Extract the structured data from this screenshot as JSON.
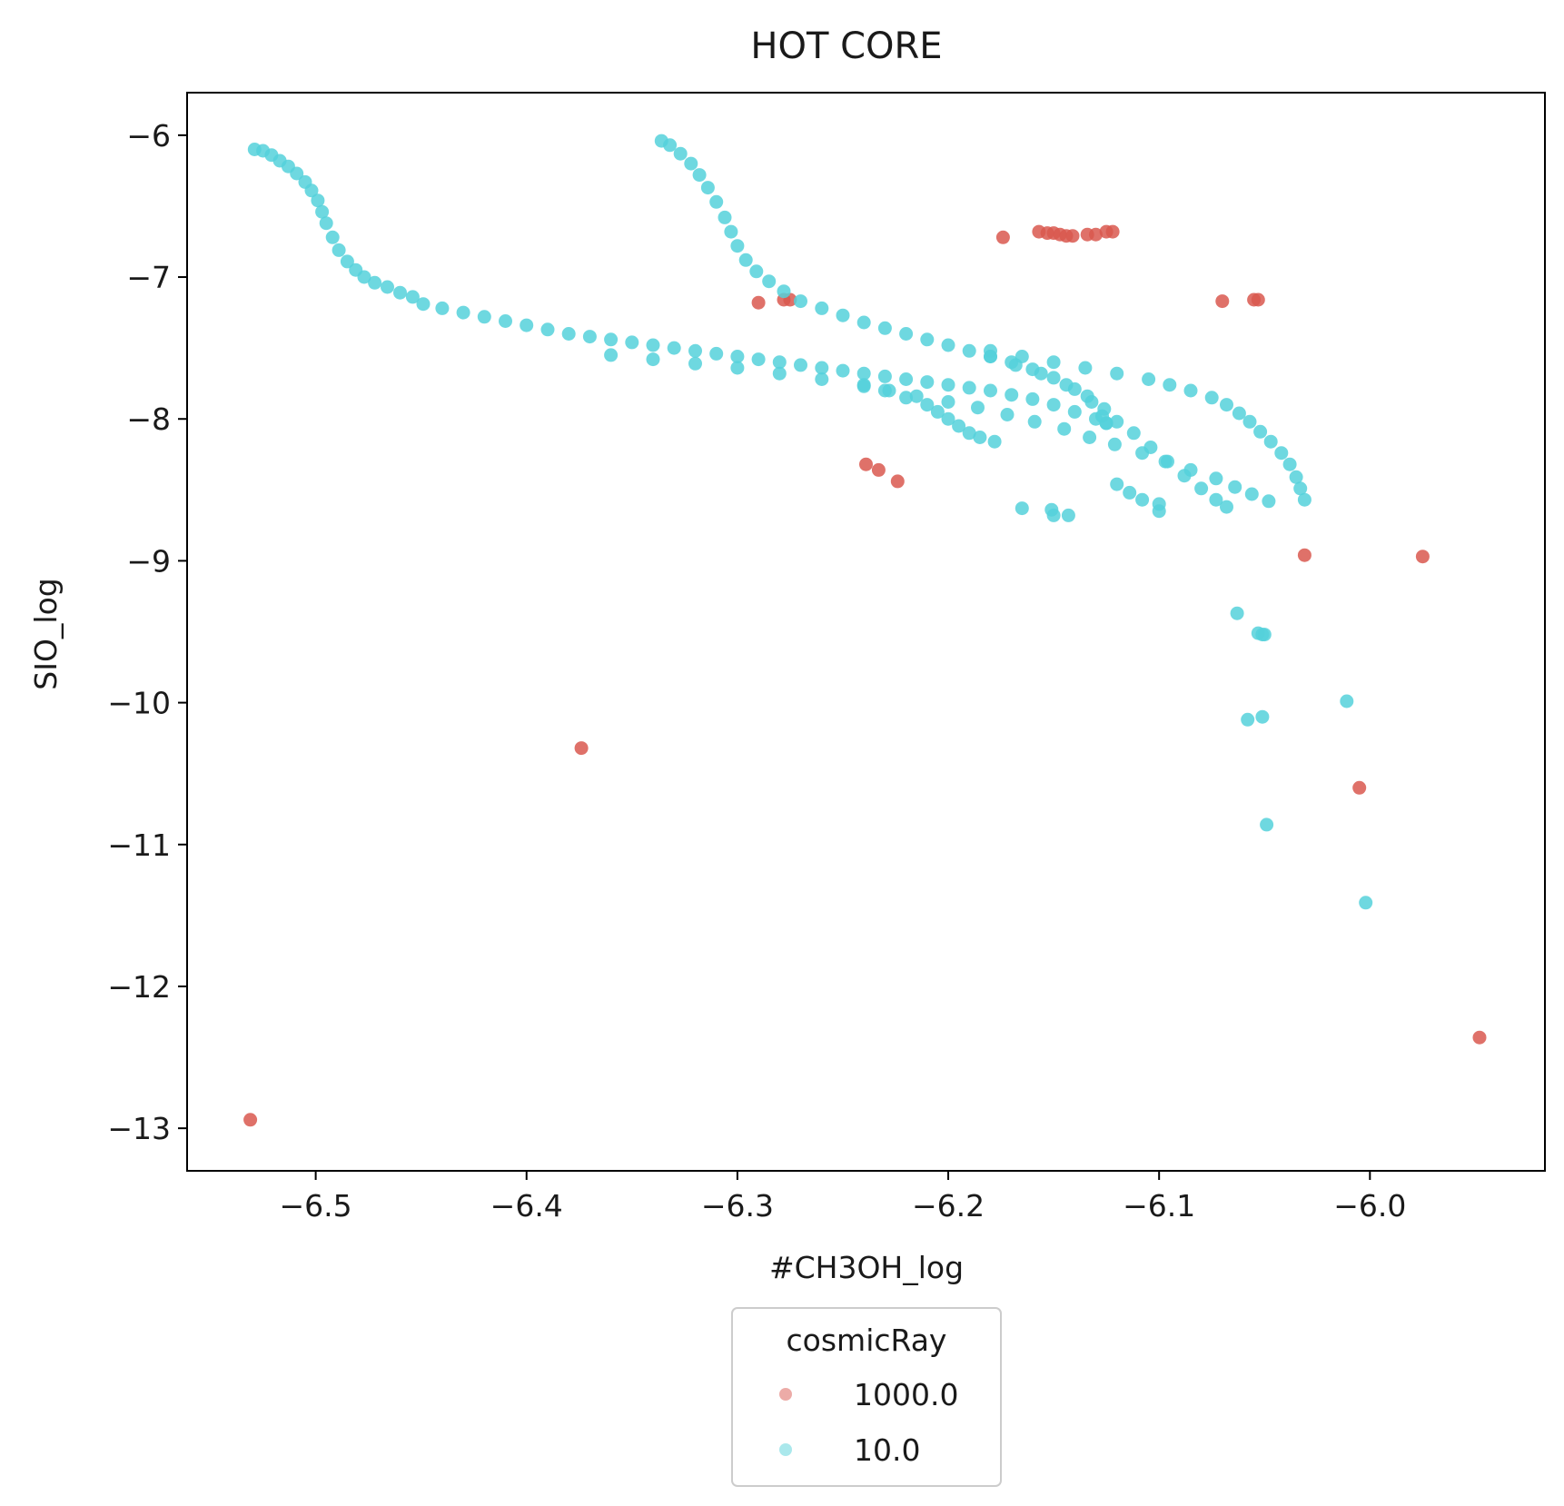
{
  "chart_data": {
    "type": "scatter",
    "title": "HOT CORE",
    "xlabel": "#CH3OH_log",
    "ylabel": "SIO_log",
    "xlim": [
      -6.561,
      -5.917
    ],
    "ylim": [
      -13.3,
      -5.7
    ],
    "xticks": [
      -6.5,
      -6.4,
      -6.3,
      -6.2,
      -6.1,
      -6.0
    ],
    "yticks": [
      -6,
      -7,
      -8,
      -9,
      -10,
      -11,
      -12,
      -13
    ],
    "xtick_labels": [
      "−6.5",
      "−6.4",
      "−6.3",
      "−6.2",
      "−6.1",
      "−6.0"
    ],
    "ytick_labels": [
      "−6",
      "−7",
      "−8",
      "−9",
      "−10",
      "−11",
      "−12",
      "−13"
    ],
    "grid": false,
    "legend": {
      "title": "cosmicRay",
      "placement": "below-center",
      "entries": [
        {
          "label": "1000.0",
          "color": "#d9584f"
        },
        {
          "label": "10.0",
          "color": "#55d1da"
        }
      ]
    },
    "series": [
      {
        "name": "1000.0",
        "color": "#d9584f",
        "points": [
          [
            -6.531,
            -12.94
          ],
          [
            -6.374,
            -10.32
          ],
          [
            -6.29,
            -7.18
          ],
          [
            -6.278,
            -7.16
          ],
          [
            -6.275,
            -7.16
          ],
          [
            -6.239,
            -8.32
          ],
          [
            -6.233,
            -8.36
          ],
          [
            -6.224,
            -8.44
          ],
          [
            -6.174,
            -6.72
          ],
          [
            -6.157,
            -6.68
          ],
          [
            -6.153,
            -6.69
          ],
          [
            -6.15,
            -6.69
          ],
          [
            -6.147,
            -6.7
          ],
          [
            -6.144,
            -6.71
          ],
          [
            -6.141,
            -6.71
          ],
          [
            -6.134,
            -6.7
          ],
          [
            -6.13,
            -6.7
          ],
          [
            -6.125,
            -6.68
          ],
          [
            -6.122,
            -6.68
          ],
          [
            -6.07,
            -7.17
          ],
          [
            -6.055,
            -7.16
          ],
          [
            -6.053,
            -7.16
          ],
          [
            -6.031,
            -8.96
          ],
          [
            -6.005,
            -10.6
          ],
          [
            -5.975,
            -8.97
          ],
          [
            -5.948,
            -12.36
          ]
        ]
      },
      {
        "name": "10.0",
        "color": "#55d1da",
        "points": [
          [
            -6.529,
            -6.1
          ],
          [
            -6.525,
            -6.11
          ],
          [
            -6.521,
            -6.14
          ],
          [
            -6.517,
            -6.18
          ],
          [
            -6.513,
            -6.22
          ],
          [
            -6.509,
            -6.27
          ],
          [
            -6.505,
            -6.33
          ],
          [
            -6.502,
            -6.39
          ],
          [
            -6.499,
            -6.46
          ],
          [
            -6.497,
            -6.54
          ],
          [
            -6.495,
            -6.62
          ],
          [
            -6.492,
            -6.72
          ],
          [
            -6.489,
            -6.81
          ],
          [
            -6.485,
            -6.89
          ],
          [
            -6.481,
            -6.95
          ],
          [
            -6.477,
            -7.0
          ],
          [
            -6.472,
            -7.04
          ],
          [
            -6.466,
            -7.07
          ],
          [
            -6.46,
            -7.11
          ],
          [
            -6.454,
            -7.14
          ],
          [
            -6.449,
            -7.19
          ],
          [
            -6.44,
            -7.22
          ],
          [
            -6.43,
            -7.25
          ],
          [
            -6.42,
            -7.28
          ],
          [
            -6.41,
            -7.31
          ],
          [
            -6.4,
            -7.34
          ],
          [
            -6.39,
            -7.37
          ],
          [
            -6.38,
            -7.4
          ],
          [
            -6.37,
            -7.42
          ],
          [
            -6.36,
            -7.44
          ],
          [
            -6.35,
            -7.46
          ],
          [
            -6.34,
            -7.48
          ],
          [
            -6.33,
            -7.5
          ],
          [
            -6.32,
            -7.52
          ],
          [
            -6.31,
            -7.54
          ],
          [
            -6.3,
            -7.56
          ],
          [
            -6.29,
            -7.58
          ],
          [
            -6.28,
            -7.6
          ],
          [
            -6.27,
            -7.62
          ],
          [
            -6.26,
            -7.64
          ],
          [
            -6.25,
            -7.66
          ],
          [
            -6.24,
            -7.68
          ],
          [
            -6.23,
            -7.7
          ],
          [
            -6.22,
            -7.72
          ],
          [
            -6.21,
            -7.74
          ],
          [
            -6.2,
            -7.76
          ],
          [
            -6.19,
            -7.78
          ],
          [
            -6.18,
            -7.8
          ],
          [
            -6.17,
            -7.83
          ],
          [
            -6.16,
            -7.86
          ],
          [
            -6.15,
            -7.9
          ],
          [
            -6.14,
            -7.95
          ],
          [
            -6.13,
            -8.0
          ],
          [
            -6.125,
            -8.03
          ],
          [
            -6.36,
            -7.55
          ],
          [
            -6.34,
            -7.58
          ],
          [
            -6.32,
            -7.61
          ],
          [
            -6.3,
            -7.64
          ],
          [
            -6.28,
            -7.68
          ],
          [
            -6.26,
            -7.72
          ],
          [
            -6.24,
            -7.77
          ],
          [
            -6.23,
            -7.8
          ],
          [
            -6.22,
            -7.85
          ],
          [
            -6.21,
            -7.9
          ],
          [
            -6.205,
            -7.95
          ],
          [
            -6.2,
            -8.0
          ],
          [
            -6.195,
            -8.05
          ],
          [
            -6.19,
            -8.1
          ],
          [
            -6.185,
            -8.13
          ],
          [
            -6.178,
            -8.16
          ],
          [
            -6.24,
            -7.76
          ],
          [
            -6.228,
            -7.8
          ],
          [
            -6.215,
            -7.84
          ],
          [
            -6.2,
            -7.88
          ],
          [
            -6.186,
            -7.92
          ],
          [
            -6.172,
            -7.97
          ],
          [
            -6.159,
            -8.02
          ],
          [
            -6.145,
            -8.07
          ],
          [
            -6.133,
            -8.13
          ],
          [
            -6.121,
            -8.18
          ],
          [
            -6.108,
            -8.24
          ],
          [
            -6.097,
            -8.3
          ],
          [
            -6.085,
            -8.36
          ],
          [
            -6.073,
            -8.42
          ],
          [
            -6.064,
            -8.48
          ],
          [
            -6.056,
            -8.53
          ],
          [
            -6.048,
            -8.58
          ],
          [
            -6.336,
            -6.04
          ],
          [
            -6.332,
            -6.07
          ],
          [
            -6.327,
            -6.13
          ],
          [
            -6.322,
            -6.2
          ],
          [
            -6.318,
            -6.28
          ],
          [
            -6.314,
            -6.37
          ],
          [
            -6.31,
            -6.47
          ],
          [
            -6.306,
            -6.58
          ],
          [
            -6.303,
            -6.68
          ],
          [
            -6.3,
            -6.78
          ],
          [
            -6.296,
            -6.88
          ],
          [
            -6.291,
            -6.96
          ],
          [
            -6.285,
            -7.03
          ],
          [
            -6.278,
            -7.1
          ],
          [
            -6.27,
            -7.17
          ],
          [
            -6.26,
            -7.22
          ],
          [
            -6.25,
            -7.27
          ],
          [
            -6.24,
            -7.32
          ],
          [
            -6.23,
            -7.36
          ],
          [
            -6.22,
            -7.4
          ],
          [
            -6.21,
            -7.44
          ],
          [
            -6.2,
            -7.48
          ],
          [
            -6.19,
            -7.52
          ],
          [
            -6.18,
            -7.56
          ],
          [
            -6.17,
            -7.6
          ],
          [
            -6.16,
            -7.65
          ],
          [
            -6.15,
            -7.71
          ],
          [
            -6.14,
            -7.79
          ],
          [
            -6.132,
            -7.88
          ],
          [
            -6.127,
            -7.98
          ],
          [
            -6.125,
            -8.03
          ],
          [
            -6.18,
            -7.56
          ],
          [
            -6.168,
            -7.62
          ],
          [
            -6.156,
            -7.68
          ],
          [
            -6.144,
            -7.76
          ],
          [
            -6.134,
            -7.84
          ],
          [
            -6.126,
            -7.93
          ],
          [
            -6.12,
            -8.02
          ],
          [
            -6.112,
            -8.1
          ],
          [
            -6.104,
            -8.2
          ],
          [
            -6.096,
            -8.3
          ],
          [
            -6.088,
            -8.4
          ],
          [
            -6.08,
            -8.49
          ],
          [
            -6.073,
            -8.57
          ],
          [
            -6.068,
            -8.62
          ],
          [
            -6.18,
            -7.52
          ],
          [
            -6.165,
            -7.56
          ],
          [
            -6.15,
            -7.6
          ],
          [
            -6.135,
            -7.64
          ],
          [
            -6.12,
            -7.68
          ],
          [
            -6.105,
            -7.72
          ],
          [
            -6.095,
            -7.76
          ],
          [
            -6.085,
            -7.8
          ],
          [
            -6.075,
            -7.85
          ],
          [
            -6.068,
            -7.9
          ],
          [
            -6.062,
            -7.96
          ],
          [
            -6.057,
            -8.02
          ],
          [
            -6.052,
            -8.09
          ],
          [
            -6.047,
            -8.16
          ],
          [
            -6.042,
            -8.24
          ],
          [
            -6.038,
            -8.32
          ],
          [
            -6.035,
            -8.41
          ],
          [
            -6.033,
            -8.49
          ],
          [
            -6.031,
            -8.57
          ],
          [
            -6.12,
            -8.46
          ],
          [
            -6.114,
            -8.52
          ],
          [
            -6.108,
            -8.57
          ],
          [
            -6.1,
            -8.6
          ],
          [
            -6.1,
            -8.65
          ],
          [
            -6.165,
            -8.63
          ],
          [
            -6.151,
            -8.64
          ],
          [
            -6.15,
            -8.68
          ],
          [
            -6.143,
            -8.68
          ],
          [
            -6.063,
            -9.37
          ],
          [
            -6.053,
            -9.51
          ],
          [
            -6.051,
            -9.52
          ],
          [
            -6.05,
            -9.52
          ],
          [
            -6.058,
            -10.12
          ],
          [
            -6.051,
            -10.1
          ],
          [
            -6.049,
            -10.86
          ],
          [
            -6.011,
            -9.99
          ],
          [
            -6.002,
            -11.41
          ]
        ]
      }
    ]
  }
}
